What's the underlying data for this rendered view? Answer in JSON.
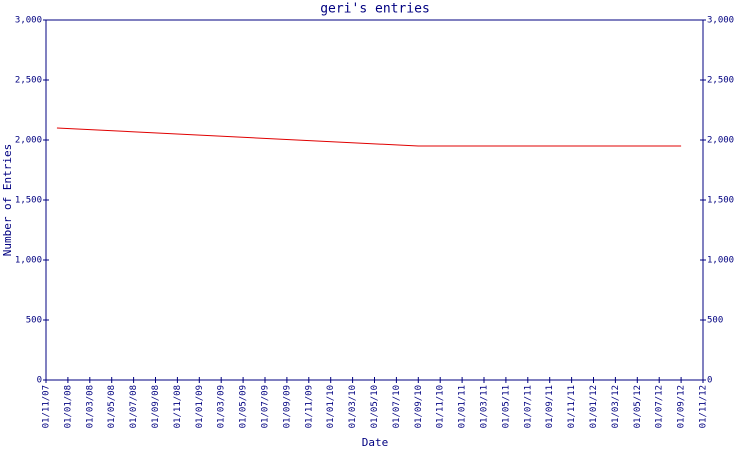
{
  "chart_data": {
    "type": "line",
    "title": "geri's entries",
    "xlabel": "Date",
    "ylabel": "Number of Entries",
    "xlim": [
      "01/11/07",
      "01/11/12"
    ],
    "xticks": [
      "01/11/07",
      "01/01/08",
      "01/03/08",
      "01/05/08",
      "01/07/08",
      "01/09/08",
      "01/11/08",
      "01/01/09",
      "01/03/09",
      "01/05/09",
      "01/07/09",
      "01/09/09",
      "01/11/09",
      "01/01/10",
      "01/03/10",
      "01/05/10",
      "01/07/10",
      "01/09/10",
      "01/11/10",
      "01/01/11",
      "01/03/11",
      "01/05/11",
      "01/07/11",
      "01/09/11",
      "01/11/11",
      "01/01/12",
      "01/03/12",
      "01/05/12",
      "01/07/12",
      "01/09/12",
      "01/11/12"
    ],
    "ylim": [
      0,
      3000
    ],
    "yticks": [
      0,
      500,
      {
        "value": 1000,
        "label": "1,000"
      },
      {
        "value": 1500,
        "label": "1,500"
      },
      {
        "value": 2000,
        "label": "2,000"
      },
      {
        "value": 2500,
        "label": "2,500"
      },
      {
        "value": 3000,
        "label": "3,000"
      }
    ],
    "y2lim": [
      0,
      3000
    ],
    "y2ticks": [
      0,
      500,
      {
        "value": 1000,
        "label": "1,000"
      },
      {
        "value": 1500,
        "label": "1,500"
      },
      {
        "value": 2000,
        "label": "2,000"
      },
      {
        "value": 2500,
        "label": "2,500"
      },
      {
        "value": 3000,
        "label": "3,000"
      }
    ],
    "axis_color": "#000080",
    "series": [
      {
        "color": "#e00000",
        "x": [
          "01/12/07",
          "01/09/10",
          "01/09/12"
        ],
        "values": [
          2100,
          1950,
          1950
        ]
      }
    ]
  }
}
